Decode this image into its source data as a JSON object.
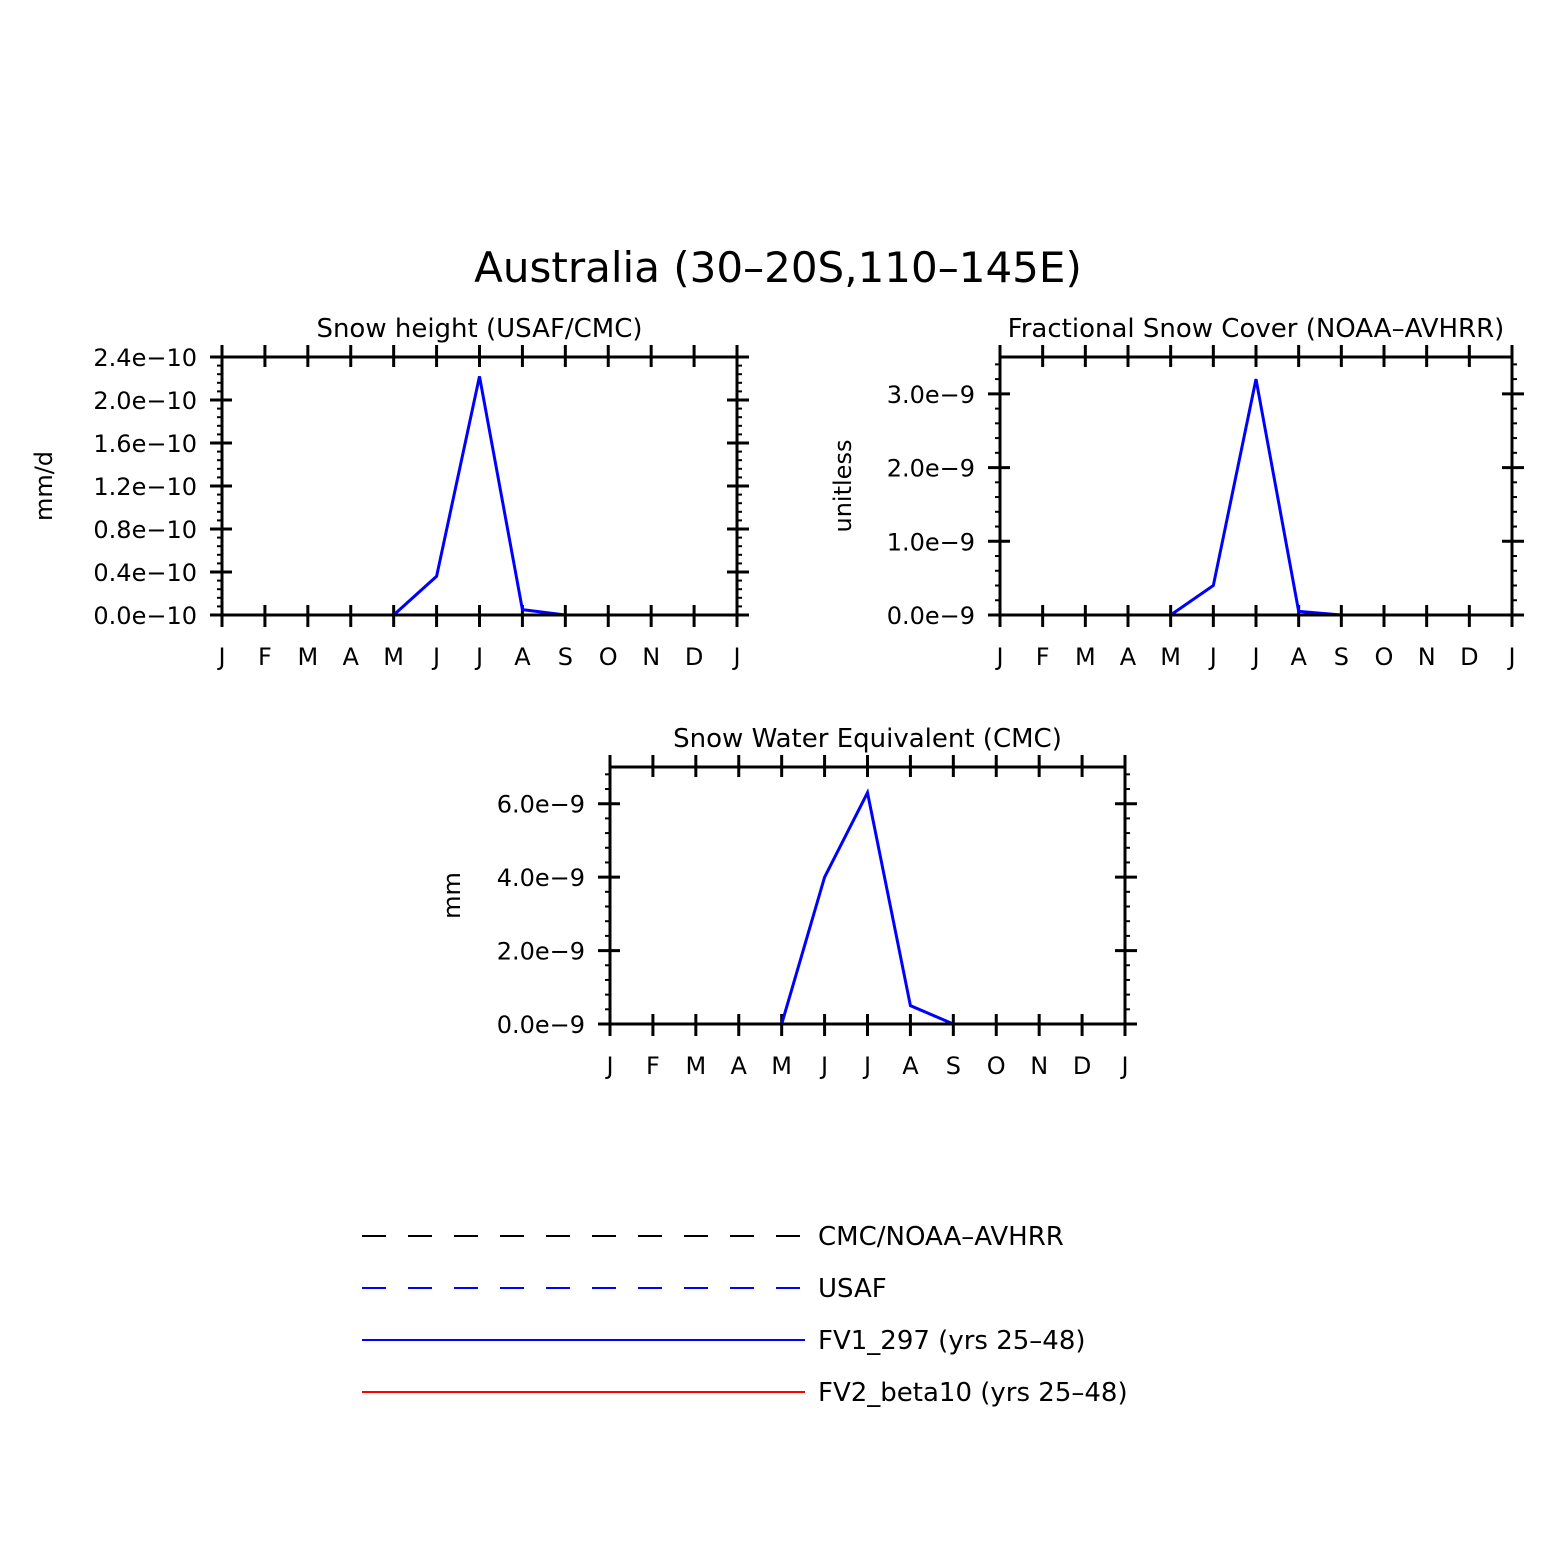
{
  "figure": {
    "title": "Australia (30–20S,110–145E)"
  },
  "chart_data": [
    {
      "type": "line",
      "title": "Snow height (USAF/CMC)",
      "xlabel": "",
      "ylabel": "mm/d",
      "categories": [
        "J",
        "F",
        "M",
        "A",
        "M",
        "J",
        "J",
        "A",
        "S",
        "O",
        "N",
        "D",
        "J"
      ],
      "ylim": [
        0,
        2.4e-10
      ],
      "yticks": [
        0,
        4e-11,
        8e-11,
        1.2e-10,
        1.6e-10,
        2e-10,
        2.4e-10
      ],
      "yticklabels": [
        "0.0e−10",
        "0.4e−10",
        "0.8e−10",
        "1.2e−10",
        "1.6e−10",
        "2.0e−10",
        "2.4e−10"
      ],
      "grid": false,
      "series": [
        {
          "name": "FV1_297 (yrs 25–48)",
          "color": "#0000ff",
          "values": [
            0,
            0,
            0,
            0,
            0,
            3.6e-11,
            2.22e-10,
            5e-12,
            0,
            0,
            0,
            0,
            0
          ]
        },
        {
          "name": "FV2_beta10 (yrs 25–48)",
          "color": "#ff0000",
          "values": [
            0,
            0,
            0,
            0,
            0,
            0,
            0,
            0,
            0,
            0,
            0,
            0,
            0
          ]
        }
      ]
    },
    {
      "type": "line",
      "title": "Fractional Snow Cover (NOAA–AVHRR)",
      "xlabel": "",
      "ylabel": "unitless",
      "categories": [
        "J",
        "F",
        "M",
        "A",
        "M",
        "J",
        "J",
        "A",
        "S",
        "O",
        "N",
        "D",
        "J"
      ],
      "ylim": [
        0,
        3.5e-09
      ],
      "yticks": [
        0,
        1e-09,
        2e-09,
        3e-09
      ],
      "yticklabels": [
        "0.0e−9",
        "1.0e−9",
        "2.0e−9",
        "3.0e−9"
      ],
      "grid": false,
      "series": [
        {
          "name": "FV1_297 (yrs 25–48)",
          "color": "#0000ff",
          "values": [
            0,
            0,
            0,
            0,
            0,
            4e-10,
            3.2e-09,
            5e-11,
            0,
            0,
            0,
            0,
            0
          ]
        },
        {
          "name": "FV2_beta10 (yrs 25–48)",
          "color": "#ff0000",
          "values": [
            0,
            0,
            0,
            0,
            0,
            0,
            0,
            0,
            0,
            0,
            0,
            0,
            0
          ]
        }
      ]
    },
    {
      "type": "line",
      "title": "Snow Water Equivalent (CMC)",
      "xlabel": "",
      "ylabel": "mm",
      "categories": [
        "J",
        "F",
        "M",
        "A",
        "M",
        "J",
        "J",
        "A",
        "S",
        "O",
        "N",
        "D",
        "J"
      ],
      "ylim": [
        0,
        7e-09
      ],
      "yticks": [
        0,
        2e-09,
        4e-09,
        6e-09
      ],
      "yticklabels": [
        "0.0e−9",
        "2.0e−9",
        "4.0e−9",
        "6.0e−9"
      ],
      "grid": false,
      "series": [
        {
          "name": "FV1_297 (yrs 25–48)",
          "color": "#0000ff",
          "values": [
            0,
            0,
            0,
            0,
            0,
            4e-09,
            6.3e-09,
            5e-10,
            0,
            0,
            0,
            0,
            0
          ]
        },
        {
          "name": "FV2_beta10 (yrs 25–48)",
          "color": "#ff0000",
          "values": [
            0,
            0,
            0,
            0,
            0,
            0,
            0,
            0,
            0,
            0,
            0,
            0,
            0
          ]
        }
      ]
    }
  ],
  "legend": {
    "position": "bottom",
    "entries": [
      {
        "label": "CMC/NOAA–AVHRR",
        "color": "#000000",
        "style": "dashed"
      },
      {
        "label": "USAF",
        "color": "#0000ff",
        "style": "dashed"
      },
      {
        "label": "FV1_297 (yrs 25–48)",
        "color": "#0000ff",
        "style": "solid"
      },
      {
        "label": "FV2_beta10 (yrs 25–48)",
        "color": "#ff0000",
        "style": "solid"
      }
    ]
  }
}
